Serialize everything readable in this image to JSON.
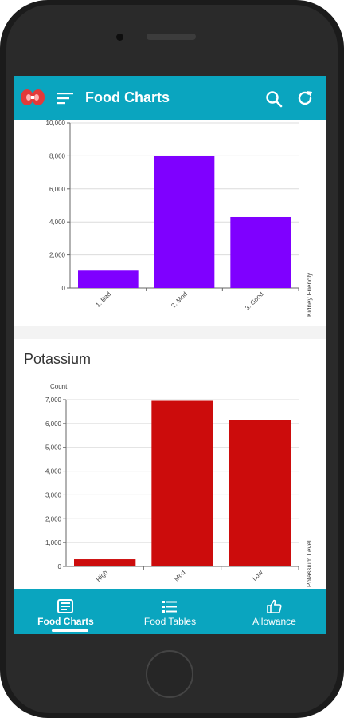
{
  "app": {
    "title": "Food Charts"
  },
  "icons": {
    "logo": "kidney-logo-icon",
    "menu": "menu-icon",
    "search": "search-icon",
    "refresh": "refresh-icon"
  },
  "colors": {
    "accent": "#0aa5bf",
    "kidney_bar": "#7f00ff",
    "potassium_bar": "#cc0c0c"
  },
  "cards": {
    "potassium_title": "Potassium"
  },
  "chart_data": [
    {
      "type": "bar",
      "title": "",
      "categories": [
        "1. Bad",
        "2. Mod",
        "3. Good"
      ],
      "values": [
        1050,
        8000,
        4300
      ],
      "ylabel": "",
      "xlabel": "Kidney Friendly",
      "ylim": [
        0,
        10000
      ],
      "yticks": [
        0,
        2000,
        4000,
        6000,
        8000,
        10000
      ],
      "ytick_labels": [
        "0",
        "2,000",
        "4,000",
        "6,000",
        "8,000",
        "10,000"
      ],
      "color": "#7f00ff",
      "grid": true
    },
    {
      "type": "bar",
      "title": "Potassium",
      "categories": [
        "High",
        "Mod",
        "Low"
      ],
      "values": [
        300,
        6950,
        6150
      ],
      "ylabel": "Count",
      "xlabel": "Potassium Level",
      "ylim": [
        0,
        7000
      ],
      "yticks": [
        0,
        1000,
        2000,
        3000,
        4000,
        5000,
        6000,
        7000
      ],
      "ytick_labels": [
        "0",
        "1,000",
        "2,000",
        "3,000",
        "4,000",
        "5,000",
        "6,000",
        "7,000"
      ],
      "color": "#cc0c0c",
      "grid": true
    }
  ],
  "bottom_nav": {
    "items": [
      {
        "label": "Food Charts",
        "icon": "news-icon",
        "active": true
      },
      {
        "label": "Food Tables",
        "icon": "list-icon",
        "active": false
      },
      {
        "label": "Allowance",
        "icon": "thumbs-up-icon",
        "active": false
      }
    ]
  }
}
